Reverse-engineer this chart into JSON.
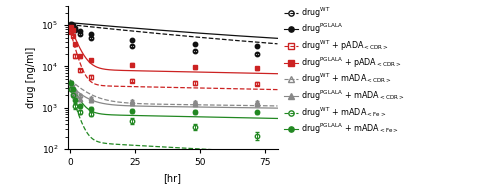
{
  "xlabel": "[hr]",
  "ylabel": "drug [ng/ml]",
  "xlim": [
    -1,
    80
  ],
  "ylim": [
    100,
    300000
  ],
  "xticks": [
    0,
    25,
    50,
    75
  ],
  "series": [
    {
      "color": "#111111",
      "marker": "o",
      "filled": false,
      "linestyle": "--",
      "x": [
        0.5,
        1,
        2,
        4,
        8,
        24,
        48,
        72
      ],
      "y": [
        100000,
        90000,
        78000,
        62000,
        48000,
        32000,
        24000,
        20000
      ],
      "ye": [
        8000,
        6000,
        4000,
        3500,
        2500,
        2000,
        1500,
        1500
      ],
      "fit_a": 85000,
      "fit_b": 0.018,
      "fit_c": 18000,
      "fit_d": 0.002
    },
    {
      "color": "#111111",
      "marker": "o",
      "filled": true,
      "linestyle": "-",
      "x": [
        0.5,
        1,
        2,
        4,
        8,
        24,
        48,
        72
      ],
      "y": [
        110000,
        100000,
        88000,
        74000,
        60000,
        44000,
        36000,
        32000
      ],
      "ye": [
        9000,
        7000,
        5000,
        4000,
        3000,
        2500,
        2000,
        2000
      ],
      "fit_a": 90000,
      "fit_b": 0.016,
      "fit_c": 25000,
      "fit_d": 0.001
    },
    {
      "color": "#cc2222",
      "marker": "s",
      "filled": false,
      "linestyle": "--",
      "x": [
        0.5,
        1,
        2,
        4,
        8,
        24,
        48,
        72
      ],
      "y": [
        70000,
        55000,
        18000,
        8000,
        5500,
        4500,
        4000,
        3800
      ],
      "ye": [
        5000,
        4000,
        2000,
        800,
        600,
        400,
        350,
        300
      ],
      "fit_a": 72000,
      "fit_b": 0.55,
      "fit_c": 3500,
      "fit_d": 0.003
    },
    {
      "color": "#cc2222",
      "marker": "s",
      "filled": true,
      "linestyle": "-",
      "x": [
        0.5,
        1,
        2,
        4,
        8,
        24,
        48,
        72
      ],
      "y": [
        90000,
        75000,
        35000,
        18000,
        14000,
        11000,
        9500,
        9000
      ],
      "ye": [
        7000,
        5000,
        3000,
        1500,
        1200,
        900,
        800,
        700
      ],
      "fit_a": 88000,
      "fit_b": 0.4,
      "fit_c": 8500,
      "fit_d": 0.003
    },
    {
      "color": "#888888",
      "marker": "^",
      "filled": false,
      "linestyle": "--",
      "x": [
        0.5,
        1,
        2,
        4,
        8,
        24,
        48,
        72
      ],
      "y": [
        4000,
        3200,
        2500,
        2000,
        1700,
        1450,
        1380,
        1350
      ],
      "ye": [
        400,
        300,
        220,
        180,
        150,
        120,
        100,
        90
      ],
      "fit_a": 3500,
      "fit_b": 0.18,
      "fit_c": 1300,
      "fit_d": 0.002
    },
    {
      "color": "#888888",
      "marker": "^",
      "filled": true,
      "linestyle": "-",
      "x": [
        0.5,
        1,
        2,
        4,
        8,
        24,
        48,
        72
      ],
      "y": [
        3000,
        2400,
        1900,
        1650,
        1500,
        1300,
        1250,
        1200
      ],
      "ye": [
        300,
        250,
        190,
        160,
        140,
        110,
        100,
        90
      ],
      "fit_a": 2500,
      "fit_b": 0.22,
      "fit_c": 1150,
      "fit_d": 0.002
    },
    {
      "color": "#228822",
      "marker": "o",
      "filled": false,
      "linestyle": "--",
      "x": [
        0.5,
        1,
        2,
        4,
        8,
        24,
        48,
        72
      ],
      "y": [
        2800,
        2000,
        1100,
        800,
        700,
        480,
        340,
        210
      ],
      "ye": [
        300,
        220,
        150,
        100,
        80,
        70,
        55,
        45
      ],
      "fit_a": 2800,
      "fit_b": 0.5,
      "fit_c": 150,
      "fit_d": 0.008
    },
    {
      "color": "#228822",
      "marker": "o",
      "filled": true,
      "linestyle": "-",
      "x": [
        0.5,
        1,
        2,
        4,
        8,
        24,
        48,
        72
      ],
      "y": [
        4000,
        2800,
        1500,
        1100,
        950,
        850,
        800,
        780
      ],
      "ye": [
        380,
        280,
        170,
        130,
        110,
        95,
        85,
        75
      ],
      "fit_a": 4000,
      "fit_b": 0.4,
      "fit_c": 700,
      "fit_d": 0.003
    }
  ],
  "legend_entries": [
    {
      "super": "WT",
      "sub": "",
      "subscript": "",
      "color": "#111111",
      "marker": "o",
      "filled": false,
      "linestyle": "--"
    },
    {
      "super": "PGLALA",
      "sub": "",
      "subscript": "",
      "color": "#111111",
      "marker": "o",
      "filled": true,
      "linestyle": "-"
    },
    {
      "super": "WT",
      "sub": " + pADA",
      "subscript": "<CDR>",
      "color": "#cc2222",
      "marker": "s",
      "filled": false,
      "linestyle": "--"
    },
    {
      "super": "PGLALA",
      "sub": " + pADA",
      "subscript": "<CDR>",
      "color": "#cc2222",
      "marker": "s",
      "filled": true,
      "linestyle": "-"
    },
    {
      "super": "WT",
      "sub": " + mADA",
      "subscript": "<CDR>",
      "color": "#888888",
      "marker": "^",
      "filled": false,
      "linestyle": "--"
    },
    {
      "super": "PGLALA",
      "sub": " + mADA",
      "subscript": "<CDR>",
      "color": "#888888",
      "marker": "^",
      "filled": true,
      "linestyle": "-"
    },
    {
      "super": "WT",
      "sub": " + mADA",
      "subscript": "<Fe>",
      "color": "#228822",
      "marker": "o",
      "filled": false,
      "linestyle": "--"
    },
    {
      "super": "PGLALA",
      "sub": " + mADA",
      "subscript": "<Fe>",
      "color": "#228822",
      "marker": "o",
      "filled": true,
      "linestyle": "-"
    }
  ]
}
